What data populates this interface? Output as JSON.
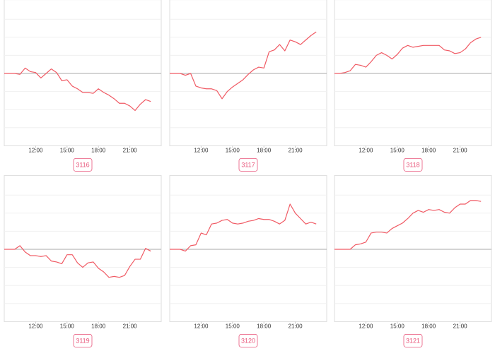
{
  "chart_data": [
    {
      "type": "line",
      "title": "3116",
      "color": "#f05a64",
      "grid": true,
      "x": [
        9,
        9.5,
        10,
        10.5,
        11,
        11.5,
        12,
        12.5,
        13,
        13.5,
        14,
        14.5,
        15,
        15.5,
        16,
        16.5,
        17,
        17.5,
        18,
        18.5,
        19,
        19.5,
        20,
        20.5,
        21,
        21.5,
        22,
        22.5,
        23
      ],
      "values": [
        0,
        0,
        0,
        -0.05,
        0.3,
        0.1,
        0.05,
        -0.25,
        0,
        0.25,
        0.05,
        -0.4,
        -0.35,
        -0.7,
        -0.85,
        -1.05,
        -1.05,
        -1.1,
        -0.85,
        -1.05,
        -1.2,
        -1.4,
        -1.65,
        -1.65,
        -1.8,
        -2.05,
        -1.7,
        -1.45,
        -1.55
      ],
      "xlim": [
        9,
        24
      ],
      "xticks": [
        {
          "value": 12,
          "label": "12:00"
        },
        {
          "value": 15,
          "label": "15:00"
        },
        {
          "value": 18,
          "label": "18:00"
        },
        {
          "value": 21,
          "label": "21:00"
        }
      ],
      "ylim": [
        -4,
        4
      ],
      "yticks": [
        -3,
        -2,
        -1,
        0,
        1,
        2,
        3
      ]
    },
    {
      "type": "line",
      "title": "3117",
      "color": "#f05a64",
      "grid": true,
      "x": [
        9,
        9.5,
        10,
        10.5,
        11,
        11.5,
        12,
        12.5,
        13,
        13.5,
        14,
        14.5,
        15,
        15.5,
        16,
        16.5,
        17,
        17.5,
        18,
        18.5,
        19,
        19.5,
        20,
        20.5,
        21,
        21.5,
        22,
        22.5,
        23
      ],
      "values": [
        0,
        0,
        0,
        -0.1,
        0,
        -0.7,
        -0.8,
        -0.85,
        -0.85,
        -0.95,
        -1.4,
        -1.0,
        -0.75,
        -0.55,
        -0.35,
        -0.05,
        0.2,
        0.35,
        0.3,
        1.2,
        1.3,
        1.6,
        1.25,
        1.85,
        1.75,
        1.6,
        1.85,
        2.1,
        2.3
      ],
      "xlim": [
        9,
        24
      ],
      "xticks": [
        {
          "value": 12,
          "label": "12:00"
        },
        {
          "value": 15,
          "label": "15:00"
        },
        {
          "value": 18,
          "label": "18:00"
        },
        {
          "value": 21,
          "label": "21:00"
        }
      ],
      "ylim": [
        -4,
        4
      ],
      "yticks": [
        -3,
        -2,
        -1,
        0,
        1,
        2,
        3
      ]
    },
    {
      "type": "line",
      "title": "3118",
      "color": "#f05a64",
      "grid": true,
      "x": [
        9,
        9.5,
        10,
        10.5,
        11,
        11.5,
        12,
        12.5,
        13,
        13.5,
        14,
        14.5,
        15,
        15.5,
        16,
        16.5,
        17,
        17.5,
        18,
        18.5,
        19,
        19.5,
        20,
        20.5,
        21,
        21.5,
        22,
        22.5,
        23
      ],
      "values": [
        0,
        0,
        0.05,
        0.15,
        0.5,
        0.45,
        0.35,
        0.65,
        1.0,
        1.15,
        1.0,
        0.8,
        1.05,
        1.4,
        1.55,
        1.45,
        1.5,
        1.55,
        1.55,
        1.55,
        1.55,
        1.3,
        1.25,
        1.1,
        1.15,
        1.35,
        1.7,
        1.9,
        2.0
      ],
      "xlim": [
        9,
        24
      ],
      "xticks": [
        {
          "value": 12,
          "label": "12:00"
        },
        {
          "value": 15,
          "label": "15:00"
        },
        {
          "value": 18,
          "label": "18:00"
        },
        {
          "value": 21,
          "label": "21:00"
        }
      ],
      "ylim": [
        -4,
        4
      ],
      "yticks": [
        -3,
        -2,
        -1,
        0,
        1,
        2,
        3
      ]
    },
    {
      "type": "line",
      "title": "3119",
      "color": "#f05a64",
      "grid": true,
      "x": [
        9,
        9.5,
        10,
        10.5,
        11,
        11.5,
        12,
        12.5,
        13,
        13.5,
        14,
        14.5,
        15,
        15.5,
        16,
        16.5,
        17,
        17.5,
        18,
        18.5,
        19,
        19.5,
        20,
        20.5,
        21,
        21.5,
        22,
        22.5,
        23
      ],
      "values": [
        0,
        0,
        0,
        0.2,
        -0.15,
        -0.35,
        -0.35,
        -0.4,
        -0.35,
        -0.65,
        -0.7,
        -0.8,
        -0.3,
        -0.3,
        -0.75,
        -1.0,
        -0.75,
        -0.7,
        -1.05,
        -1.25,
        -1.55,
        -1.5,
        -1.55,
        -1.45,
        -0.95,
        -0.55,
        -0.55,
        0.05,
        -0.1
      ],
      "xlim": [
        9,
        24
      ],
      "xticks": [
        {
          "value": 12,
          "label": "12:00"
        },
        {
          "value": 15,
          "label": "15:00"
        },
        {
          "value": 18,
          "label": "18:00"
        },
        {
          "value": 21,
          "label": "21:00"
        }
      ],
      "ylim": [
        -4,
        4
      ],
      "yticks": [
        -3,
        -2,
        -1,
        0,
        1,
        2,
        3
      ]
    },
    {
      "type": "line",
      "title": "3120",
      "color": "#f05a64",
      "grid": true,
      "x": [
        9,
        9.5,
        10,
        10.5,
        11,
        11.5,
        12,
        12.5,
        13,
        13.5,
        14,
        14.5,
        15,
        15.5,
        16,
        16.5,
        17,
        17.5,
        18,
        18.5,
        19,
        19.5,
        20,
        20.5,
        21,
        21.5,
        22,
        22.5,
        23
      ],
      "values": [
        0,
        0,
        0,
        -0.1,
        0.2,
        0.25,
        0.9,
        0.8,
        1.4,
        1.45,
        1.6,
        1.65,
        1.45,
        1.4,
        1.45,
        1.55,
        1.6,
        1.7,
        1.65,
        1.65,
        1.55,
        1.4,
        1.6,
        2.5,
        2.0,
        1.7,
        1.4,
        1.5,
        1.4
      ],
      "xlim": [
        9,
        24
      ],
      "xticks": [
        {
          "value": 12,
          "label": "12:00"
        },
        {
          "value": 15,
          "label": "15:00"
        },
        {
          "value": 18,
          "label": "18:00"
        },
        {
          "value": 21,
          "label": "21:00"
        }
      ],
      "ylim": [
        -4,
        4
      ],
      "yticks": [
        -3,
        -2,
        -1,
        0,
        1,
        2,
        3
      ]
    },
    {
      "type": "line",
      "title": "3121",
      "color": "#f05a64",
      "grid": true,
      "x": [
        9,
        9.5,
        10,
        10.5,
        11,
        11.5,
        12,
        12.5,
        13,
        13.5,
        14,
        14.5,
        15,
        15.5,
        16,
        16.5,
        17,
        17.5,
        18,
        18.5,
        19,
        19.5,
        20,
        20.5,
        21,
        21.5,
        22,
        22.5,
        23
      ],
      "values": [
        0,
        0,
        0,
        0,
        0.25,
        0.3,
        0.4,
        0.9,
        0.95,
        0.95,
        0.9,
        1.15,
        1.3,
        1.45,
        1.7,
        2.0,
        2.15,
        2.05,
        2.2,
        2.15,
        2.2,
        2.05,
        2.0,
        2.3,
        2.5,
        2.5,
        2.7,
        2.7,
        2.65
      ],
      "xlim": [
        9,
        24
      ],
      "xticks": [
        {
          "value": 12,
          "label": "12:00"
        },
        {
          "value": 15,
          "label": "15:00"
        },
        {
          "value": 18,
          "label": "18:00"
        },
        {
          "value": 21,
          "label": "21:00"
        }
      ],
      "ylim": [
        -4,
        4
      ],
      "yticks": [
        -3,
        -2,
        -1,
        0,
        1,
        2,
        3
      ]
    }
  ]
}
